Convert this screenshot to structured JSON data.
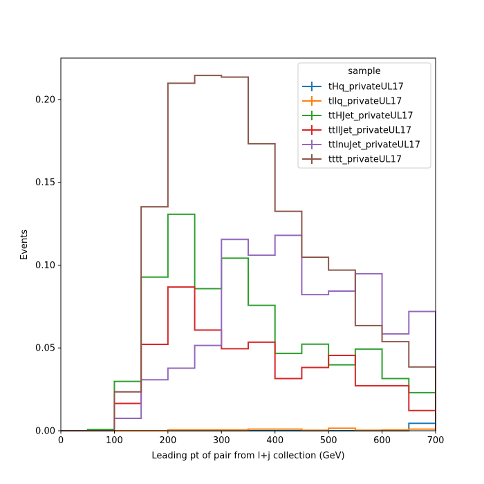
{
  "chart_data": {
    "type": "histogram-step",
    "xlabel": "Leading pt of pair from l+j collection (GeV)",
    "ylabel": "Events",
    "xlim": [
      0,
      700
    ],
    "ylim": [
      0,
      0.225
    ],
    "xticks": [
      "0",
      "100",
      "200",
      "300",
      "400",
      "500",
      "600",
      "700"
    ],
    "yticks": [
      "0.00",
      "0.05",
      "0.10",
      "0.15",
      "0.20"
    ],
    "grid": false,
    "legend": {
      "title": "sample",
      "position": "top-right"
    },
    "bin_edges": [
      0,
      50,
      100,
      150,
      200,
      250,
      300,
      350,
      400,
      450,
      500,
      550,
      600,
      650,
      700
    ],
    "series": [
      {
        "name": "tHq_privateUL17",
        "color": "#1f77b4",
        "values": [
          0,
          0,
          0,
          0,
          0,
          0,
          0,
          0,
          0,
          0,
          0,
          0,
          0,
          0.0045
        ]
      },
      {
        "name": "tllq_privateUL17",
        "color": "#ff7f0e",
        "values": [
          0,
          0,
          0,
          0,
          0.0005,
          0.0005,
          0.0005,
          0.001,
          0.001,
          0.0003,
          0.0015,
          0.0003,
          0.0005,
          0.001
        ]
      },
      {
        "name": "ttHJet_privateUL17",
        "color": "#2ca02c",
        "values": [
          0,
          0.0008,
          0.0298,
          0.0928,
          0.1307,
          0.0858,
          0.1042,
          0.0757,
          0.0467,
          0.0523,
          0.0398,
          0.0493,
          0.0315,
          0.023
        ]
      },
      {
        "name": "ttllJet_privateUL17",
        "color": "#d62728",
        "values": [
          0,
          0,
          0.0165,
          0.0522,
          0.0868,
          0.0608,
          0.0495,
          0.0535,
          0.0315,
          0.0382,
          0.0455,
          0.0272,
          0.0272,
          0.0122
        ]
      },
      {
        "name": "ttlnuJet_privateUL17",
        "color": "#9467bd",
        "values": [
          0,
          0,
          0.0075,
          0.0308,
          0.0378,
          0.0515,
          0.1155,
          0.106,
          0.118,
          0.0822,
          0.0843,
          0.0948,
          0.0585,
          0.072
        ]
      },
      {
        "name": "tttt_privateUL17",
        "color": "#8c564b",
        "values": [
          0,
          0,
          0.0235,
          0.1352,
          0.2098,
          0.2145,
          0.2135,
          0.1733,
          0.1325,
          0.1048,
          0.097,
          0.0635,
          0.0538,
          0.0385
        ]
      }
    ]
  }
}
